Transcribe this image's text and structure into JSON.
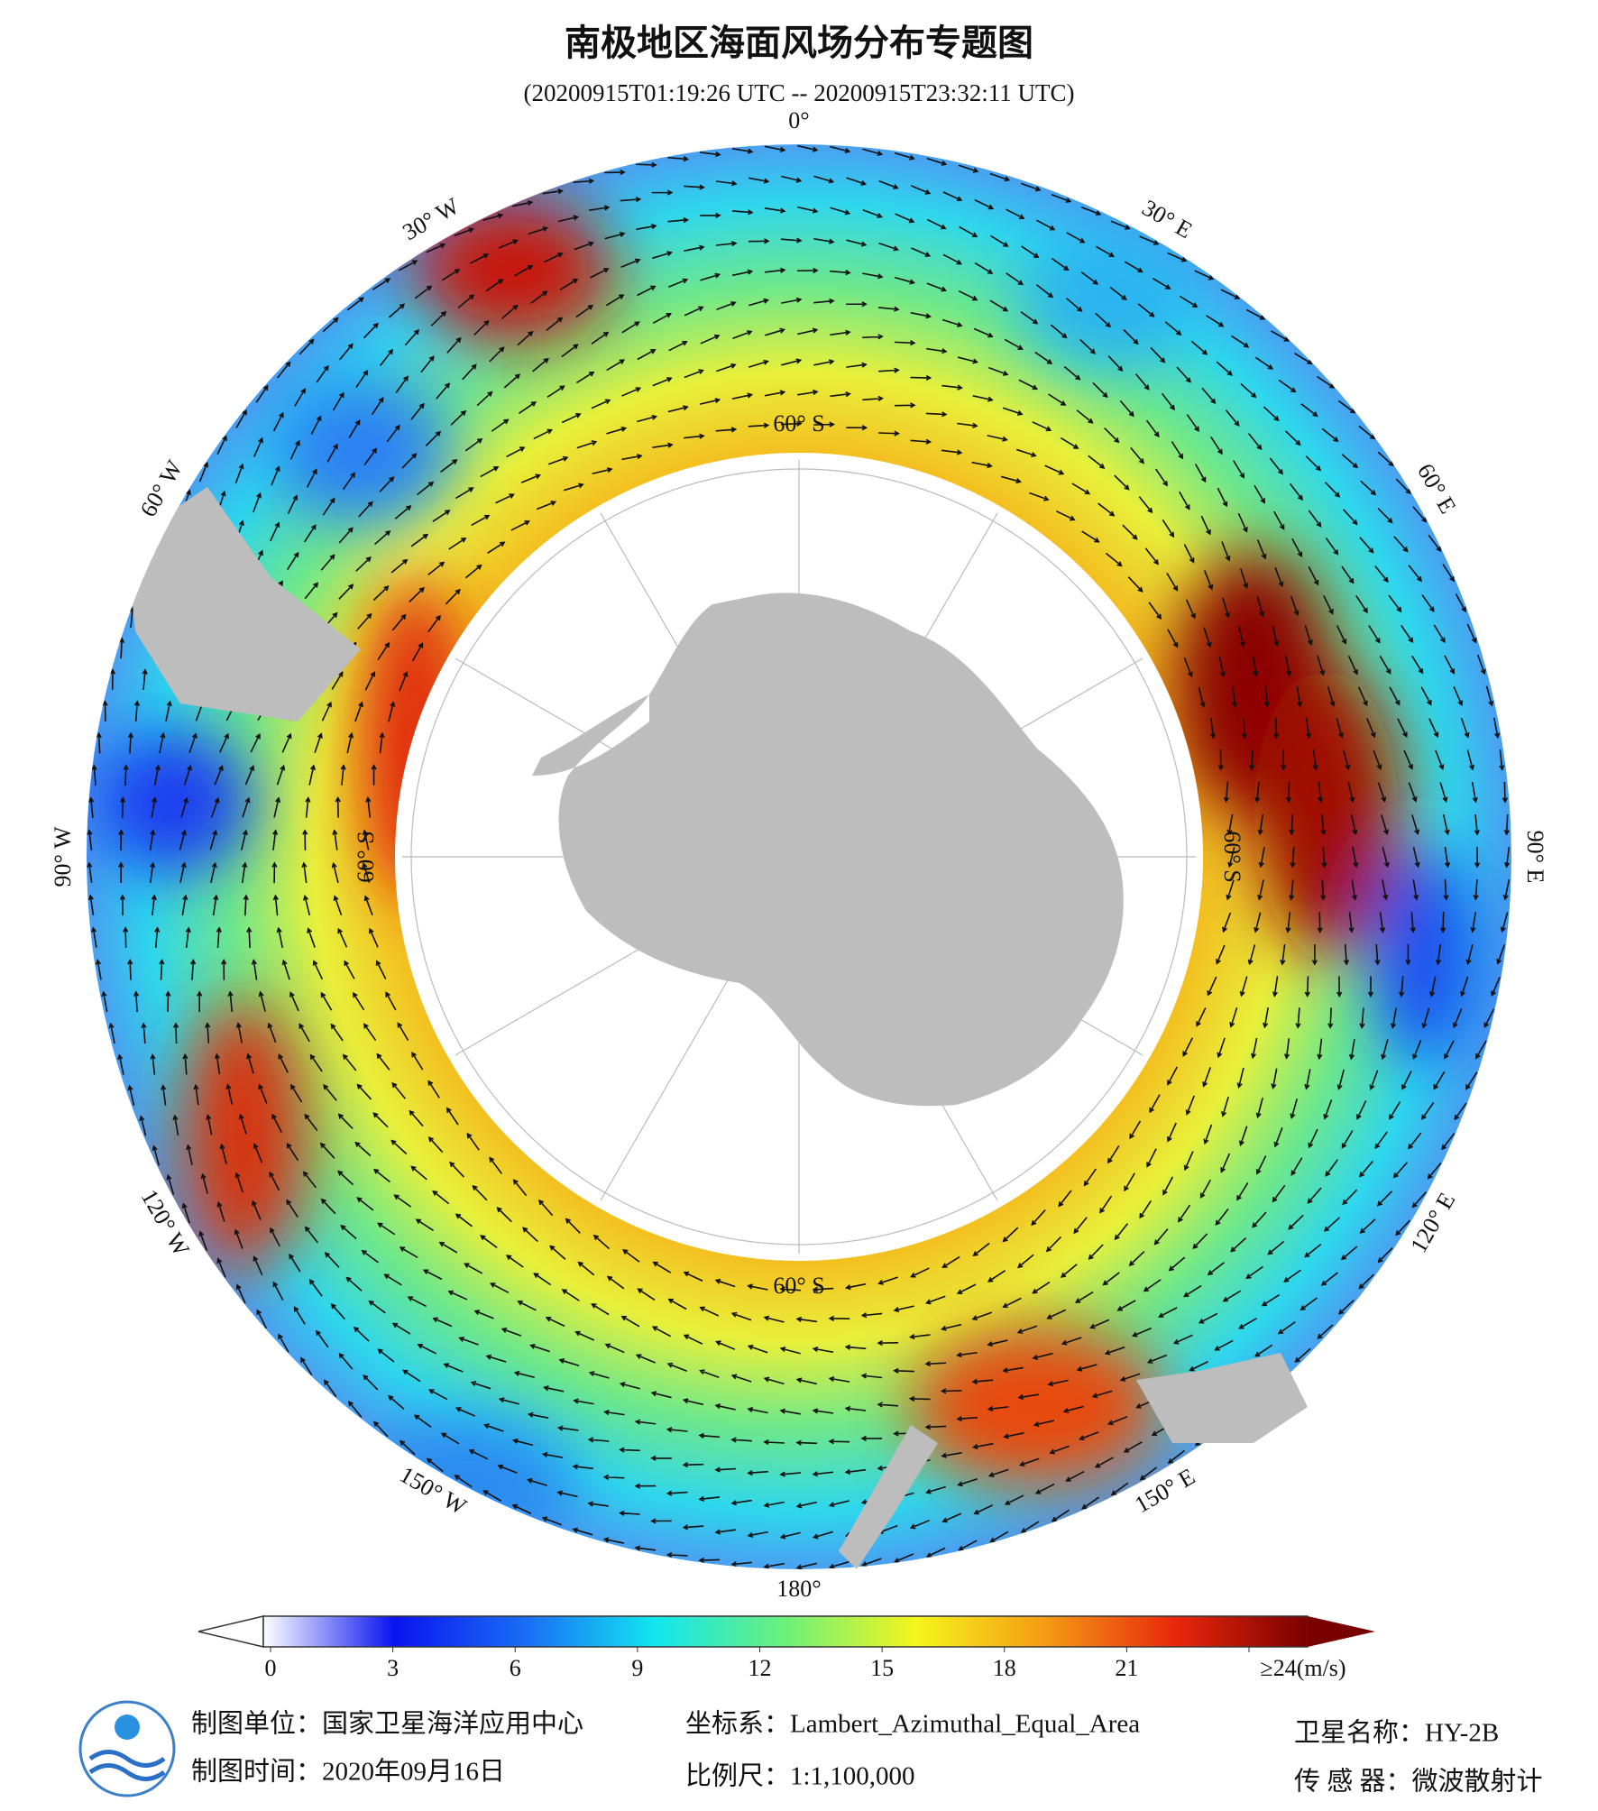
{
  "header": {
    "title": "南极地区海面风场分布专题图",
    "subtitle": "(20200915T01:19:26 UTC -- 20200915T23:32:11 UTC)"
  },
  "map": {
    "longitude_labels": [
      "0°",
      "30° E",
      "60° E",
      "90° E",
      "120° E",
      "150° E",
      "180°",
      "150° W",
      "120° W",
      "90° W",
      "60° W",
      "30° W"
    ],
    "latitude_labels": [
      "60° S",
      "60° S",
      "60° S",
      "60° S"
    ]
  },
  "colorbar": {
    "lim": [
      0,
      24
    ],
    "ticks": [
      0,
      3,
      6,
      9,
      12,
      15,
      18,
      21,
      {
        "value": 24,
        "label": "≥24(m/s)"
      }
    ],
    "colors": [
      "#ffffff",
      "#0a14f0",
      "#1a6cf5",
      "#12e6f0",
      "#6cf07a",
      "#f5f51c",
      "#f59a14",
      "#e8260c",
      "#7a0000"
    ]
  },
  "footer": {
    "unit": "制图单位：国家卫星海洋应用中心",
    "time": "制图时间：2020年09月16日",
    "crs": "坐标系：Lambert_Azimuthal_Equal_Area",
    "scale": "比例尺：1:1,100,000",
    "satellite": "卫星名称：HY-2B",
    "sensor": "传 感 器：微波散射计"
  }
}
